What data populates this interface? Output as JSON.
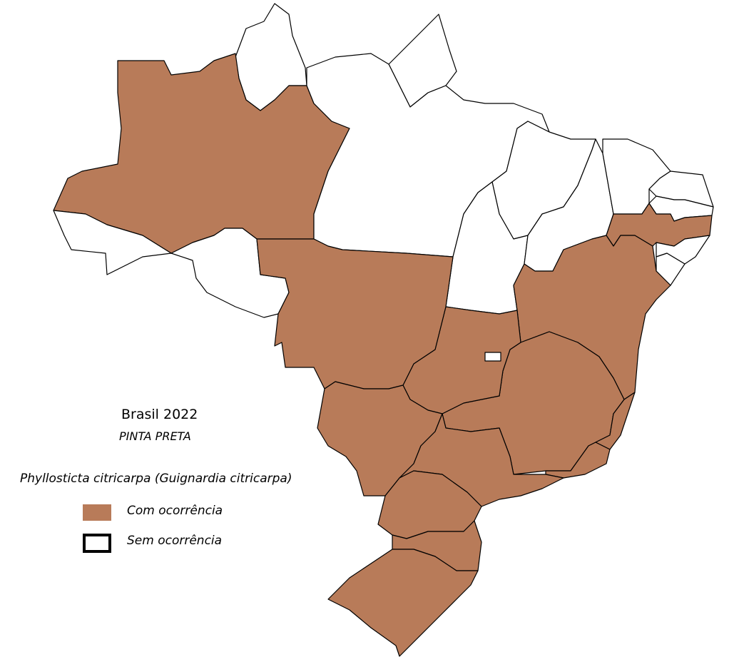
{
  "legend": {
    "title": "Brasil 2022",
    "subtitle": "PINTA PRETA",
    "species": "Phyllosticta citricarpa (Guignardia citricarpa)",
    "items": [
      {
        "label": "Com ocorrência",
        "color": "#b87b59"
      },
      {
        "label": "Sem ocorrência",
        "color": "#ffffff"
      }
    ]
  },
  "colors": {
    "occurrence": "#b87b59",
    "no_occurrence": "#ffffff",
    "border": "#000000"
  },
  "occurrence": {
    "RR": false,
    "AP": false,
    "AM": true,
    "AC": false,
    "RO": false,
    "PA": false,
    "MA": false,
    "TO": false,
    "PI": false,
    "CE": false,
    "RN": false,
    "PB": false,
    "PE": true,
    "AL": false,
    "SE": false,
    "BA": true,
    "MG": true,
    "ES": true,
    "RJ": true,
    "GO": true,
    "DF": false,
    "MT": true,
    "MS": true,
    "SP": true,
    "PR": true,
    "SC": true,
    "RS": true
  }
}
